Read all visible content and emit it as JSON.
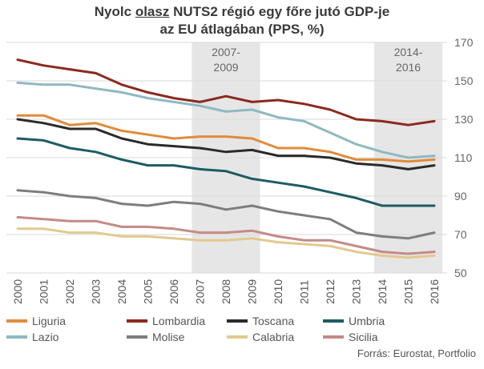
{
  "title": {
    "line1_pre": "Nyolc ",
    "line1_underlined": "olasz",
    "line1_post": " NUTS2 régió egy főre jutó GDP-je",
    "line2": "az EU átlagában (PPS, %)"
  },
  "source": "Forrás: Eurostat, Portfolio",
  "chart_data": {
    "type": "line",
    "title": "Nyolc olasz NUTS2 régió egy főre jutó GDP-je az EU átlagában (PPS, %)",
    "x": [
      "2000",
      "2001",
      "2002",
      "2003",
      "2004",
      "2005",
      "2006",
      "2007",
      "2008",
      "2009",
      "2010",
      "2011",
      "2012",
      "2013",
      "2014",
      "2015",
      "2016"
    ],
    "ylim": [
      50,
      170
    ],
    "yticks": [
      50,
      70,
      90,
      110,
      130,
      150,
      170
    ],
    "y_axis_side": "right",
    "grid": "horizontal",
    "legend_position": "bottom",
    "shaded_periods": [
      {
        "label_line1": "2007-",
        "label_line2": "2009",
        "from": "2007",
        "to": "2009"
      },
      {
        "label_line1": "2014-",
        "label_line2": "2016",
        "from": "2014",
        "to": "2016"
      }
    ],
    "series": [
      {
        "name": "Lombardia",
        "color": "#8b2a1e",
        "values": [
          161,
          158,
          156,
          154,
          148,
          144,
          141,
          139,
          142,
          139,
          140,
          138,
          135,
          130,
          129,
          127,
          129
        ]
      },
      {
        "name": "Lazio",
        "color": "#8fb9c0",
        "values": [
          149,
          148,
          148,
          146,
          144,
          141,
          139,
          137,
          134,
          135,
          131,
          129,
          123,
          117,
          113,
          110,
          111
        ]
      },
      {
        "name": "Liguria",
        "color": "#e08b3a",
        "values": [
          132,
          132,
          127,
          128,
          124,
          122,
          120,
          121,
          121,
          120,
          115,
          115,
          113,
          109,
          109,
          108,
          109
        ]
      },
      {
        "name": "Toscana",
        "color": "#2b2b2b",
        "values": [
          130,
          128,
          125,
          125,
          120,
          117,
          116,
          115,
          113,
          114,
          111,
          111,
          110,
          107,
          106,
          104,
          106
        ]
      },
      {
        "name": "Umbria",
        "color": "#1d5c63",
        "values": [
          120,
          119,
          115,
          113,
          109,
          106,
          106,
          104,
          103,
          99,
          97,
          95,
          92,
          89,
          85,
          85,
          85
        ]
      },
      {
        "name": "Molise",
        "color": "#7d7d7d",
        "values": [
          93,
          92,
          90,
          89,
          86,
          85,
          87,
          86,
          83,
          85,
          82,
          80,
          78,
          71,
          69,
          68,
          71
        ]
      },
      {
        "name": "Sicilia",
        "color": "#c68a86",
        "values": [
          79,
          78,
          77,
          77,
          74,
          74,
          73,
          71,
          71,
          72,
          69,
          67,
          67,
          64,
          61,
          60,
          61
        ]
      },
      {
        "name": "Calabria",
        "color": "#e2c98f",
        "values": [
          73,
          73,
          71,
          71,
          69,
          69,
          68,
          67,
          67,
          68,
          66,
          65,
          64,
          61,
          59,
          58,
          59
        ]
      }
    ]
  },
  "legend": [
    {
      "name": "Liguria",
      "color": "#e08b3a"
    },
    {
      "name": "Lombardia",
      "color": "#8b2a1e"
    },
    {
      "name": "Toscana",
      "color": "#2b2b2b"
    },
    {
      "name": "Umbria",
      "color": "#1d5c63"
    },
    {
      "name": "Lazio",
      "color": "#8fb9c0"
    },
    {
      "name": "Molise",
      "color": "#7d7d7d"
    },
    {
      "name": "Calabria",
      "color": "#e2c98f"
    },
    {
      "name": "Sicilia",
      "color": "#c68a86"
    }
  ]
}
